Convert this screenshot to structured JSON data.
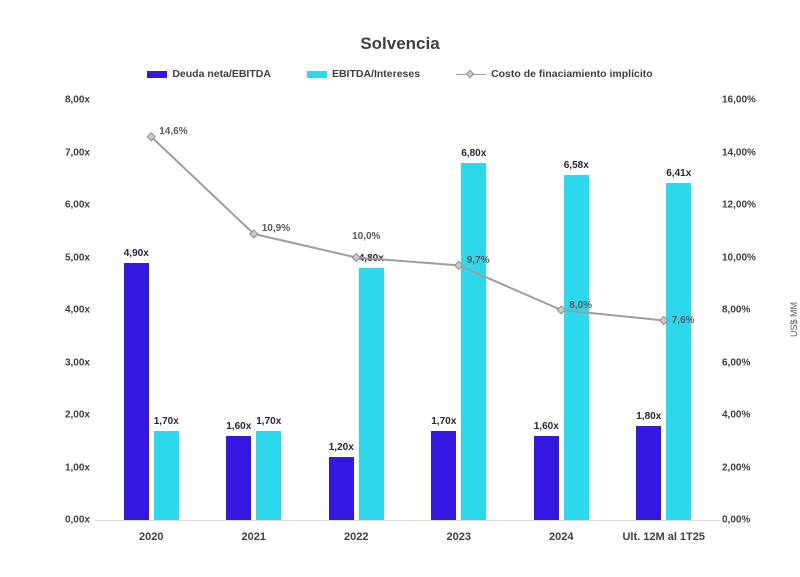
{
  "chart_data": {
    "type": "combo_bar_line",
    "title": "Solvencia",
    "categories": [
      "2020",
      "2021",
      "2022",
      "2023",
      "2024",
      "Ult. 12M al 1T25"
    ],
    "bar_series": [
      {
        "name": "Deuda neta/EBITDA",
        "color": "#3418E2",
        "axis": "left",
        "values": [
          4.9,
          1.6,
          1.2,
          1.7,
          1.6,
          1.8
        ],
        "labels": [
          "4,90x",
          "1,60x",
          "1,20x",
          "1,70x",
          "1,60x",
          "1,80x"
        ]
      },
      {
        "name": "EBITDA/Intereses",
        "color": "#2CD9EC",
        "axis": "left",
        "values": [
          1.7,
          1.7,
          4.8,
          6.8,
          6.58,
          6.41
        ],
        "labels": [
          "1,70x",
          "1,70x",
          "4,80x",
          "6,80x",
          "6,58x",
          "6,41x"
        ]
      }
    ],
    "line_series": {
      "name": "Costo de finaciamiento implícito",
      "color": "#9E9E9E",
      "marker_fill": "#C9C9C9",
      "marker_stroke": "#8F8F8F",
      "axis": "right",
      "values": [
        14.6,
        10.9,
        10.0,
        9.7,
        8.0,
        7.6
      ],
      "labels": [
        "14,6%",
        "10,9%",
        "10,0%",
        "9,7%",
        "8,0%",
        "7,6%"
      ],
      "label_offsets": [
        [
          8,
          -5,
          "left"
        ],
        [
          8,
          -5,
          "left"
        ],
        [
          10,
          -21,
          "center"
        ],
        [
          8,
          -4,
          "left"
        ],
        [
          8,
          -4,
          "left"
        ],
        [
          8,
          0,
          "left"
        ]
      ]
    },
    "left_axis": {
      "min": 0,
      "max": 8,
      "ticks": [
        "8,00x",
        "7,00x",
        "6,00x",
        "5,00x",
        "4,00x",
        "3,00x",
        "2,00x",
        "1,00x",
        "0,00x"
      ]
    },
    "right_axis": {
      "min": 0,
      "max": 16,
      "ticks": [
        "16,00%",
        "14,00%",
        "12,00%",
        "10,00%",
        "8,00%",
        "6,00%",
        "4,00%",
        "2,00%",
        "0,00%"
      ],
      "title": "US$ MM"
    },
    "grid": "baseline-only",
    "legend_position": "top"
  }
}
